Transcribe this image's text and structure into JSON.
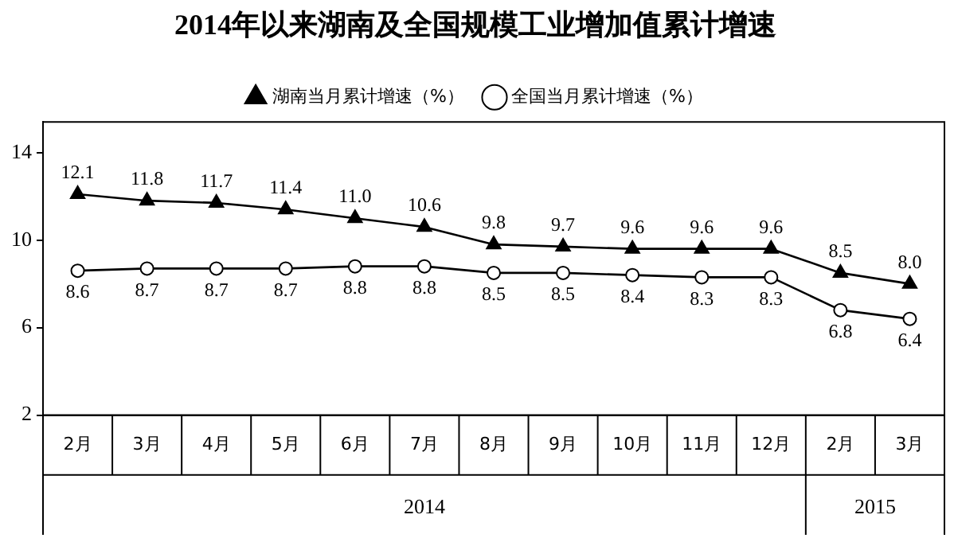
{
  "chart_data": {
    "type": "line",
    "title": "2014年以来湖南及全国规模工业增加值累计增速",
    "categories": [
      "2月",
      "3月",
      "4月",
      "5月",
      "6月",
      "7月",
      "8月",
      "9月",
      "10月",
      "11月",
      "12月",
      "2月",
      "3月"
    ],
    "series": [
      {
        "name": "湖南当月累计增速（%）",
        "color": "#000000",
        "marker": "triangle",
        "values": [
          12.1,
          11.8,
          11.7,
          11.4,
          11.0,
          10.6,
          9.8,
          9.7,
          9.6,
          9.6,
          9.6,
          8.5,
          8.0
        ],
        "value_labels": [
          "12.1",
          "11.8",
          "11.7",
          "11.4",
          "11.0",
          "10.6",
          "9.8",
          "9.7",
          "9.6",
          "9.6",
          "9.6",
          "8.5",
          "8.0"
        ]
      },
      {
        "name": "全国当月累计增速（%）",
        "color": "#000000",
        "marker": "circle",
        "values": [
          8.6,
          8.7,
          8.7,
          8.7,
          8.8,
          8.8,
          8.5,
          8.5,
          8.4,
          8.3,
          8.3,
          6.8,
          6.4
        ],
        "value_labels": [
          "8.6",
          "8.7",
          "8.7",
          "8.7",
          "8.8",
          "8.8",
          "8.5",
          "8.5",
          "8.4",
          "8.3",
          "8.3",
          "6.8",
          "6.4"
        ]
      }
    ],
    "annotations": [
      "2014",
      "2015"
    ],
    "ylim": [
      2,
      15.4
    ],
    "yticks": [
      2,
      6,
      10,
      14
    ],
    "grid": false,
    "legend": "top",
    "line_style": "solid"
  }
}
